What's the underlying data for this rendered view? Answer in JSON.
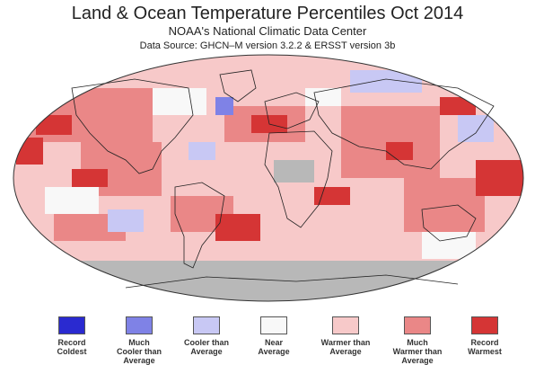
{
  "header": {
    "title": "Land & Ocean Temperature Percentiles Oct 2014",
    "subtitle": "NOAA's National Climatic Data Center",
    "source": "Data Source: GHCN–M version 3.2.2 & ERSST version 3b"
  },
  "colors": {
    "record_coldest": "#2a2ad0",
    "much_cooler": "#7f82e6",
    "cooler": "#c8c8f4",
    "near": "#f8f8f8",
    "warmer": "#f7c9c9",
    "much_warmer": "#ea8787",
    "record_warmest": "#d53535",
    "no_data": "#b8b8b8"
  },
  "legend": [
    {
      "line1": "Record",
      "line2": "Coldest",
      "color": "#2a2ad0"
    },
    {
      "line1": "Much",
      "line2": "Cooler than",
      "line3": "Average",
      "color": "#7f82e6"
    },
    {
      "line1": "Cooler than",
      "line2": "Average",
      "color": "#c8c8f4"
    },
    {
      "line1": "Near",
      "line2": "Average",
      "color": "#f8f8f8"
    },
    {
      "line1": "Warmer than",
      "line2": "Average",
      "color": "#f7c9c9"
    },
    {
      "line1": "Much",
      "line2": "Warmer than",
      "line3": "Average",
      "color": "#ea8787"
    },
    {
      "line1": "Record",
      "line2": "Warmest",
      "color": "#d53535"
    }
  ]
}
